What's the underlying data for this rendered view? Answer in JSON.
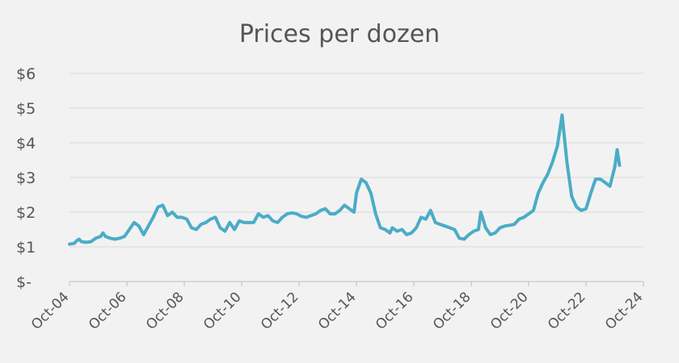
{
  "chart_data": {
    "type": "line",
    "title": "Prices per dozen",
    "xlabel": "",
    "ylabel": "",
    "ylim": [
      0,
      6
    ],
    "grid": true,
    "legend": "none",
    "y_ticks": [
      {
        "value": 0,
        "label": "$-"
      },
      {
        "value": 1,
        "label": "$1"
      },
      {
        "value": 2,
        "label": "$2"
      },
      {
        "value": 3,
        "label": "$3"
      },
      {
        "value": 4,
        "label": "$4"
      },
      {
        "value": 5,
        "label": "$5"
      },
      {
        "value": 6,
        "label": "$6"
      }
    ],
    "x_ticks": [
      "Oct-04",
      "Oct-06",
      "Oct-08",
      "Oct-10",
      "Oct-12",
      "Oct-14",
      "Oct-16",
      "Oct-18",
      "Oct-20",
      "Oct-22",
      "Oct-24"
    ],
    "line_color": "#4bacc6",
    "series": [
      {
        "name": "",
        "points": [
          [
            "2004-10",
            1.08
          ],
          [
            "2004-12",
            1.1
          ],
          [
            "2005-01",
            1.18
          ],
          [
            "2005-02",
            1.22
          ],
          [
            "2005-03",
            1.15
          ],
          [
            "2005-05",
            1.13
          ],
          [
            "2005-07",
            1.15
          ],
          [
            "2005-09",
            1.25
          ],
          [
            "2005-11",
            1.3
          ],
          [
            "2005-12",
            1.4
          ],
          [
            "2006-01",
            1.3
          ],
          [
            "2006-03",
            1.25
          ],
          [
            "2006-05",
            1.22
          ],
          [
            "2006-07",
            1.25
          ],
          [
            "2006-09",
            1.3
          ],
          [
            "2006-11",
            1.5
          ],
          [
            "2007-01",
            1.7
          ],
          [
            "2007-03",
            1.6
          ],
          [
            "2007-05",
            1.35
          ],
          [
            "2007-07",
            1.6
          ],
          [
            "2007-09",
            1.85
          ],
          [
            "2007-11",
            2.15
          ],
          [
            "2008-01",
            2.2
          ],
          [
            "2008-03",
            1.9
          ],
          [
            "2008-05",
            2.0
          ],
          [
            "2008-07",
            1.85
          ],
          [
            "2008-09",
            1.85
          ],
          [
            "2008-11",
            1.8
          ],
          [
            "2009-01",
            1.55
          ],
          [
            "2009-03",
            1.5
          ],
          [
            "2009-05",
            1.65
          ],
          [
            "2009-07",
            1.7
          ],
          [
            "2009-09",
            1.8
          ],
          [
            "2009-11",
            1.85
          ],
          [
            "2010-01",
            1.55
          ],
          [
            "2010-03",
            1.45
          ],
          [
            "2010-05",
            1.7
          ],
          [
            "2010-07",
            1.5
          ],
          [
            "2010-09",
            1.75
          ],
          [
            "2010-11",
            1.7
          ],
          [
            "2011-01",
            1.7
          ],
          [
            "2011-03",
            1.7
          ],
          [
            "2011-05",
            1.95
          ],
          [
            "2011-07",
            1.85
          ],
          [
            "2011-09",
            1.9
          ],
          [
            "2011-11",
            1.75
          ],
          [
            "2012-01",
            1.7
          ],
          [
            "2012-03",
            1.85
          ],
          [
            "2012-05",
            1.95
          ],
          [
            "2012-07",
            1.98
          ],
          [
            "2012-09",
            1.95
          ],
          [
            "2012-11",
            1.88
          ],
          [
            "2013-01",
            1.85
          ],
          [
            "2013-03",
            1.9
          ],
          [
            "2013-05",
            1.95
          ],
          [
            "2013-07",
            2.05
          ],
          [
            "2013-09",
            2.1
          ],
          [
            "2013-11",
            1.95
          ],
          [
            "2014-01",
            1.95
          ],
          [
            "2014-03",
            2.05
          ],
          [
            "2014-05",
            2.2
          ],
          [
            "2014-07",
            2.1
          ],
          [
            "2014-09",
            2.0
          ],
          [
            "2014-10",
            2.55
          ],
          [
            "2014-12",
            2.95
          ],
          [
            "2015-02",
            2.85
          ],
          [
            "2015-04",
            2.55
          ],
          [
            "2015-06",
            1.95
          ],
          [
            "2015-08",
            1.55
          ],
          [
            "2015-10",
            1.5
          ],
          [
            "2015-12",
            1.4
          ],
          [
            "2016-01",
            1.55
          ],
          [
            "2016-03",
            1.45
          ],
          [
            "2016-05",
            1.5
          ],
          [
            "2016-07",
            1.35
          ],
          [
            "2016-09",
            1.4
          ],
          [
            "2016-11",
            1.55
          ],
          [
            "2017-01",
            1.85
          ],
          [
            "2017-03",
            1.8
          ],
          [
            "2017-05",
            2.05
          ],
          [
            "2017-07",
            1.7
          ],
          [
            "2017-09",
            1.65
          ],
          [
            "2017-11",
            1.6
          ],
          [
            "2018-01",
            1.55
          ],
          [
            "2018-03",
            1.5
          ],
          [
            "2018-05",
            1.25
          ],
          [
            "2018-07",
            1.22
          ],
          [
            "2018-09",
            1.35
          ],
          [
            "2018-11",
            1.45
          ],
          [
            "2019-01",
            1.5
          ],
          [
            "2019-02",
            2.0
          ],
          [
            "2019-04",
            1.55
          ],
          [
            "2019-06",
            1.35
          ],
          [
            "2019-08",
            1.4
          ],
          [
            "2019-10",
            1.55
          ],
          [
            "2019-12",
            1.6
          ],
          [
            "2020-02",
            1.62
          ],
          [
            "2020-04",
            1.65
          ],
          [
            "2020-06",
            1.8
          ],
          [
            "2020-08",
            1.85
          ],
          [
            "2020-10",
            1.95
          ],
          [
            "2020-12",
            2.05
          ],
          [
            "2021-02",
            2.55
          ],
          [
            "2021-04",
            2.85
          ],
          [
            "2021-06",
            3.1
          ],
          [
            "2021-08",
            3.45
          ],
          [
            "2021-10",
            3.9
          ],
          [
            "2021-12",
            4.8
          ],
          [
            "2022-02",
            3.45
          ],
          [
            "2022-04",
            2.45
          ],
          [
            "2022-06",
            2.15
          ],
          [
            "2022-08",
            2.05
          ],
          [
            "2022-10",
            2.1
          ],
          [
            "2022-12",
            2.55
          ],
          [
            "2023-02",
            2.95
          ],
          [
            "2023-04",
            2.95
          ],
          [
            "2023-06",
            2.85
          ],
          [
            "2023-08",
            2.75
          ],
          [
            "2023-10",
            3.3
          ],
          [
            "2023-11",
            3.8
          ],
          [
            "2023-12",
            3.35
          ]
        ]
      }
    ]
  }
}
